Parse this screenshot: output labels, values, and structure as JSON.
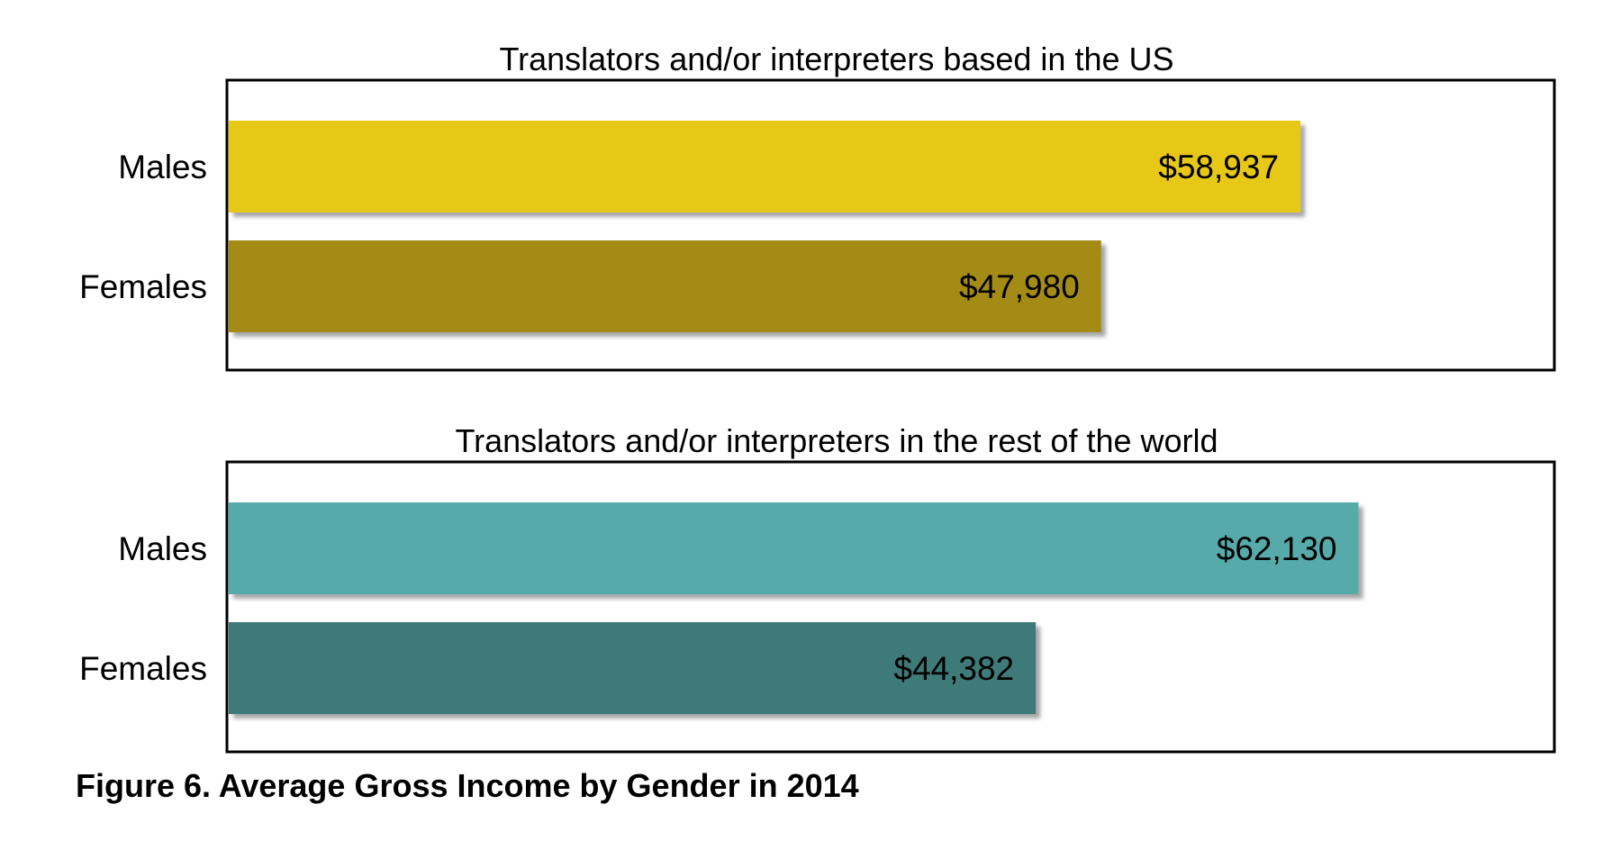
{
  "chart_data": [
    {
      "type": "bar",
      "orientation": "horizontal",
      "title": "Translators and/or interpreters based in the US",
      "categories": [
        "Males",
        "Females"
      ],
      "values": [
        58937,
        47980
      ],
      "value_labels": [
        "$58,937",
        "$47,980"
      ],
      "colors": [
        "#E8C817",
        "#A48B12"
      ],
      "xlim": [
        0,
        73000
      ],
      "grid": false,
      "legend": "none"
    },
    {
      "type": "bar",
      "orientation": "horizontal",
      "title": "Translators and/or interpreters in the rest of the world",
      "categories": [
        "Males",
        "Females"
      ],
      "values": [
        62130,
        44382
      ],
      "value_labels": [
        "$62,130",
        "$44,382"
      ],
      "colors": [
        "#56ABAA",
        "#3E7A78"
      ],
      "xlim": [
        0,
        73000
      ],
      "grid": false,
      "legend": "none"
    }
  ],
  "caption": "Figure 6. Average Gross Income by Gender in 2014"
}
